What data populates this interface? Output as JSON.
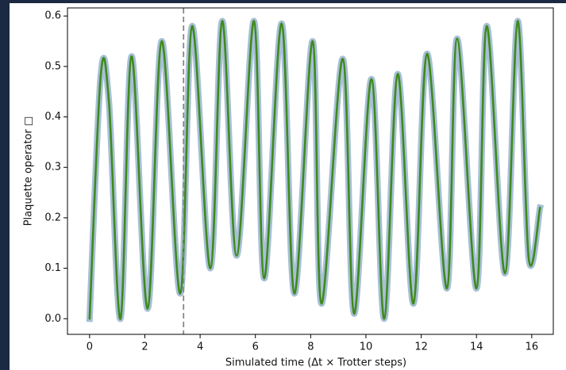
{
  "chart_data": {
    "type": "line",
    "xlabel": "Simulated time (Δt × Trotter steps)",
    "ylabel": "Plaquette operator □",
    "x": [
      0,
      0.4,
      0.7,
      1.12,
      1.52,
      2.1,
      2.61,
      3.28,
      3.71,
      4.37,
      4.8,
      5.32,
      5.95,
      6.32,
      6.95,
      7.41,
      8.07,
      8.39,
      9.16,
      9.57,
      10.2,
      10.66,
      11.15,
      11.72,
      12.21,
      12.93,
      13.3,
      14.0,
      14.37,
      15.03,
      15.49,
      15.89,
      16.3
    ],
    "series": [
      {
        "color": "#a7bfd6",
        "values": [
          0,
          0.48,
          0.43,
          0.0,
          0.52,
          0.02,
          0.55,
          0.05,
          0.58,
          0.1,
          0.59,
          0.125,
          0.59,
          0.08,
          0.585,
          0.05,
          0.55,
          0.03,
          0.515,
          0.01,
          0.475,
          0.0,
          0.485,
          0.03,
          0.525,
          0.06,
          0.555,
          0.06,
          0.58,
          0.09,
          0.59,
          0.12,
          0.22
        ]
      },
      {
        "color": "#3f8a1c",
        "values": [
          0,
          0.48,
          0.43,
          0.0,
          0.52,
          0.02,
          0.55,
          0.05,
          0.58,
          0.1,
          0.59,
          0.125,
          0.59,
          0.08,
          0.585,
          0.05,
          0.55,
          0.03,
          0.515,
          0.01,
          0.475,
          0.0,
          0.485,
          0.03,
          0.525,
          0.06,
          0.555,
          0.06,
          0.58,
          0.09,
          0.59,
          0.12,
          0.22
        ]
      }
    ],
    "vline": 3.4,
    "xlim": [
      -0.8,
      16.78
    ],
    "ylim": [
      -0.031,
      0.616
    ],
    "xticks": [
      0,
      2,
      4,
      6,
      8,
      10,
      12,
      14,
      16
    ],
    "yticks": [
      {
        "value": 0,
        "label": "0.0"
      },
      0.1,
      0.2,
      0.3,
      0.4,
      0.5,
      0.6
    ]
  }
}
